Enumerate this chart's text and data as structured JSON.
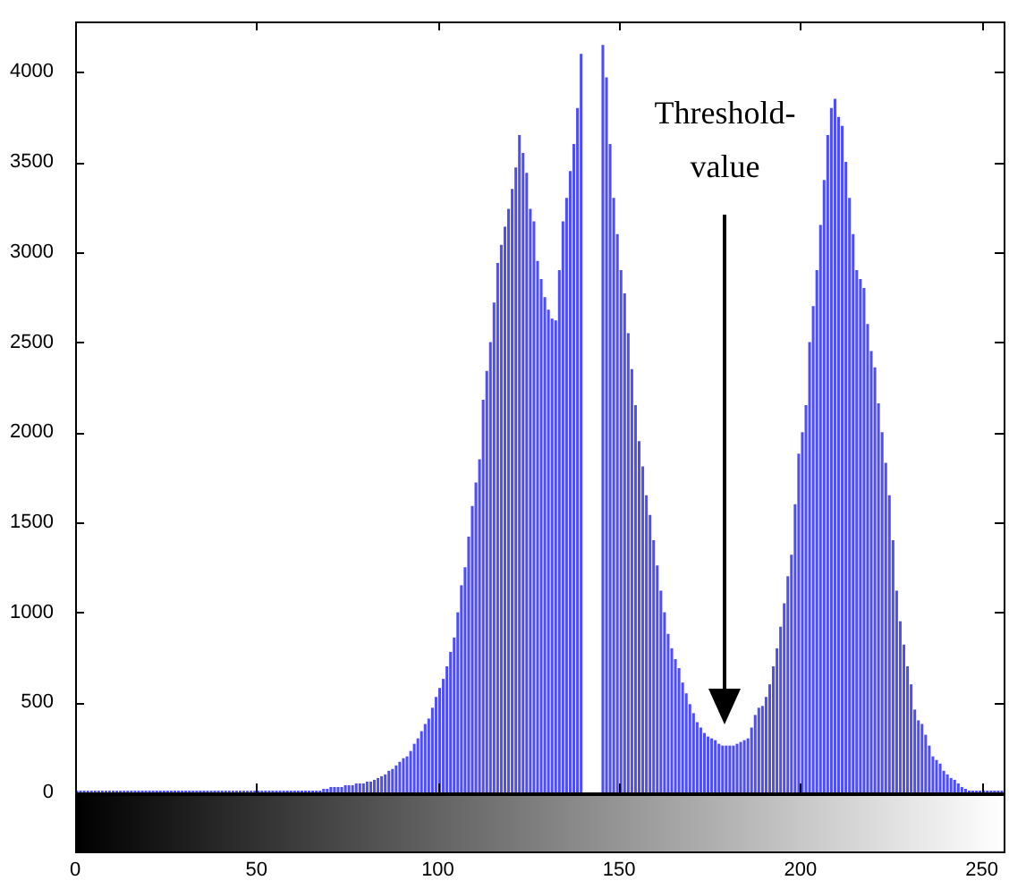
{
  "chart_data": {
    "type": "histogram",
    "color": "#4d4dff",
    "bins": [
      0,
      1,
      2,
      3,
      4,
      5,
      6,
      7,
      8,
      9,
      10,
      11,
      12,
      13,
      14,
      15,
      16,
      17,
      18,
      19,
      20,
      21,
      22,
      23,
      24,
      25,
      26,
      27,
      28,
      29,
      30,
      31,
      32,
      33,
      34,
      35,
      36,
      37,
      38,
      39,
      40,
      41,
      42,
      43,
      44,
      45,
      46,
      47,
      48,
      49,
      50,
      51,
      52,
      53,
      54,
      55,
      56,
      57,
      58,
      59,
      60,
      61,
      62,
      63,
      64,
      65,
      66,
      67,
      68,
      69,
      70,
      71,
      72,
      73,
      74,
      75,
      76,
      77,
      78,
      79,
      80,
      81,
      82,
      83,
      84,
      85,
      86,
      87,
      88,
      89,
      90,
      91,
      92,
      93,
      94,
      95,
      96,
      97,
      98,
      99,
      100,
      101,
      102,
      103,
      104,
      105,
      106,
      107,
      108,
      109,
      110,
      111,
      112,
      113,
      114,
      115,
      116,
      117,
      118,
      119,
      120,
      121,
      122,
      123,
      124,
      125,
      126,
      127,
      128,
      129,
      130,
      131,
      132,
      133,
      134,
      135,
      136,
      137,
      138,
      139,
      140,
      141,
      142,
      143,
      144,
      145,
      146,
      147,
      148,
      149,
      150,
      151,
      152,
      153,
      154,
      155,
      156,
      157,
      158,
      159,
      160,
      161,
      162,
      163,
      164,
      165,
      166,
      167,
      168,
      169,
      170,
      171,
      172,
      173,
      174,
      175,
      176,
      177,
      178,
      179,
      180,
      181,
      182,
      183,
      184,
      185,
      186,
      187,
      188,
      189,
      190,
      191,
      192,
      193,
      194,
      195,
      196,
      197,
      198,
      199,
      200,
      201,
      202,
      203,
      204,
      205,
      206,
      207,
      208,
      209,
      210,
      211,
      212,
      213,
      214,
      215,
      216,
      217,
      218,
      219,
      220,
      221,
      222,
      223,
      224,
      225,
      226,
      227,
      228,
      229,
      230,
      231,
      232,
      233,
      234,
      235,
      236,
      237,
      238,
      239,
      240,
      241,
      242,
      243,
      244,
      245,
      246,
      247,
      248,
      249,
      250,
      251,
      252,
      253,
      254,
      255,
      256
    ],
    "values": [
      0,
      0,
      0,
      0,
      0,
      0,
      0,
      0,
      0,
      0,
      0,
      0,
      0,
      0,
      0,
      0,
      0,
      0,
      0,
      0,
      0,
      0,
      0,
      0,
      0,
      0,
      0,
      0,
      0,
      0,
      0,
      0,
      0,
      0,
      0,
      0,
      0,
      0,
      0,
      0,
      0,
      0,
      0,
      0,
      0,
      0,
      0,
      0,
      0,
      0,
      0,
      0,
      0,
      0,
      0,
      0,
      0,
      0,
      0,
      0,
      0,
      0,
      0,
      10,
      10,
      10,
      10,
      10,
      20,
      20,
      30,
      30,
      30,
      30,
      40,
      40,
      40,
      50,
      50,
      50,
      60,
      60,
      70,
      80,
      90,
      100,
      120,
      130,
      150,
      170,
      190,
      200,
      230,
      270,
      300,
      340,
      380,
      410,
      470,
      530,
      580,
      630,
      700,
      780,
      860,
      1000,
      1150,
      1250,
      1420,
      1590,
      1720,
      1850,
      2180,
      2340,
      2500,
      2720,
      2940,
      3040,
      3140,
      3240,
      3350,
      3470,
      3650,
      3550,
      3440,
      3240,
      3170,
      2950,
      2850,
      2750,
      2680,
      2630,
      2620,
      2900,
      3170,
      3300,
      3450,
      3600,
      3800,
      4100,
      null,
      null,
      null,
      null,
      null,
      4150,
      3970,
      3600,
      3300,
      3100,
      2900,
      2770,
      2550,
      2350,
      2150,
      1950,
      1810,
      1650,
      1540,
      1400,
      1260,
      1120,
      1000,
      880,
      800,
      740,
      690,
      610,
      550,
      490,
      440,
      390,
      360,
      330,
      310,
      300,
      290,
      270,
      260,
      260,
      260,
      260,
      270,
      280,
      290,
      300,
      360,
      430,
      470,
      480,
      530,
      600,
      700,
      800,
      920,
      1050,
      1200,
      1320,
      1600,
      1880,
      2000,
      2150,
      2500,
      2700,
      2900,
      3150,
      3400,
      3650,
      3800,
      3850,
      3750,
      3700,
      3500,
      3300,
      3100,
      2900,
      2850,
      2800,
      2600,
      2450,
      2360,
      2160,
      2000,
      1830,
      1650,
      1400,
      1120,
      950,
      820,
      700,
      600,
      460,
      400,
      380,
      320,
      260,
      200,
      180,
      160,
      120,
      100,
      80,
      70,
      50,
      30,
      20,
      10,
      10,
      10,
      10,
      0,
      0,
      0,
      0,
      0,
      0
    ],
    "xlim": [
      0,
      256
    ],
    "xticks": [
      0,
      50,
      100,
      150,
      200,
      250
    ],
    "ylim": [
      0,
      4280
    ],
    "yticks": [
      0,
      500,
      1000,
      1500,
      2000,
      2500,
      3000,
      3500,
      4000
    ],
    "grid": false,
    "annotations": [
      "Threshold-value"
    ]
  }
}
